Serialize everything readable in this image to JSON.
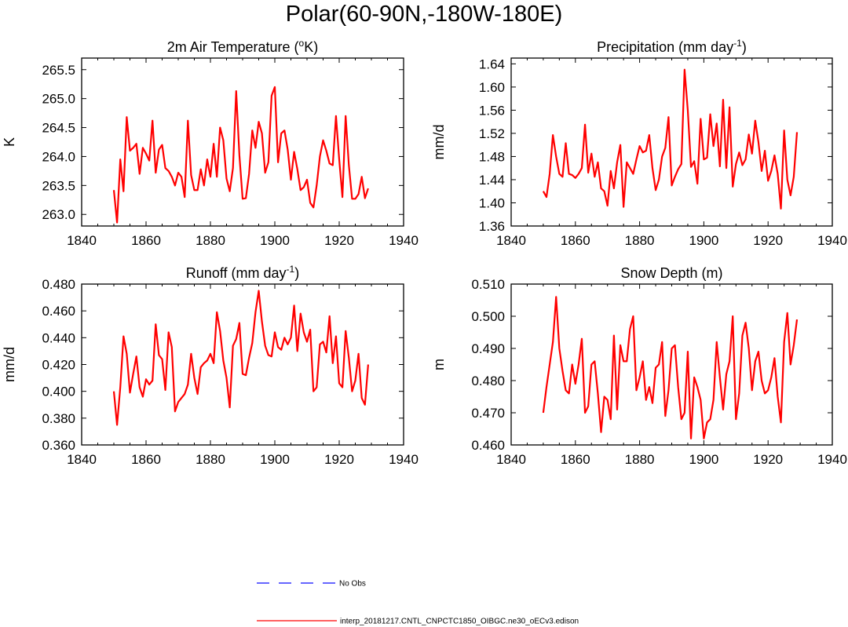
{
  "page_title": "Polar(60-90N,-180W-180E)",
  "colors": {
    "model": "#ff0000",
    "obs": "#3333ff",
    "axis": "#000000"
  },
  "legend": {
    "obs_label": "No Obs",
    "model_label": "interp_20181217.CNTL_CNPCTC1850_OIBGC.ne30_oECv3.edison"
  },
  "chart_data": [
    {
      "type": "line",
      "title_parts": [
        "2m Air Temperature (",
        "o",
        "K)"
      ],
      "title_style": "sup",
      "ylabel": "K",
      "xlim": [
        1840,
        1940
      ],
      "xticks": [
        1840,
        1860,
        1880,
        1900,
        1920,
        1940
      ],
      "ylim": [
        262.8,
        265.7
      ],
      "yticks": [
        263.0,
        263.5,
        264.0,
        264.5,
        265.0,
        265.5
      ],
      "ytick_decimals": 1,
      "x_start": 1850,
      "series": [
        {
          "name": "model",
          "values": [
            263.42,
            262.86,
            263.95,
            263.4,
            264.68,
            264.1,
            264.15,
            264.22,
            263.7,
            264.15,
            264.05,
            263.93,
            264.62,
            263.72,
            264.12,
            264.2,
            263.8,
            263.75,
            263.65,
            263.5,
            263.72,
            263.65,
            263.3,
            264.62,
            263.68,
            263.42,
            263.42,
            263.78,
            263.5,
            263.95,
            263.65,
            264.22,
            263.65,
            264.5,
            264.28,
            263.62,
            263.4,
            263.8,
            265.13,
            264.02,
            263.27,
            263.28,
            263.7,
            264.45,
            264.15,
            264.6,
            264.4,
            263.72,
            263.9,
            265.05,
            265.2,
            263.9,
            264.4,
            264.45,
            264.12,
            263.6,
            264.08,
            263.78,
            263.42,
            263.47,
            263.6,
            263.2,
            263.12,
            263.5,
            264.0,
            264.28,
            264.1,
            263.88,
            263.85,
            264.7,
            263.95,
            263.3,
            264.7,
            263.85,
            263.27,
            263.27,
            263.35,
            263.65,
            263.28,
            263.45
          ]
        }
      ]
    },
    {
      "type": "line",
      "title_parts": [
        "Precipitation (mm day",
        "-1",
        ")"
      ],
      "title_style": "sup",
      "ylabel": "mm/d",
      "xlim": [
        1840,
        1940
      ],
      "xticks": [
        1840,
        1860,
        1880,
        1900,
        1920,
        1940
      ],
      "ylim": [
        1.36,
        1.65
      ],
      "yticks": [
        1.36,
        1.4,
        1.44,
        1.48,
        1.52,
        1.56,
        1.6,
        1.64
      ],
      "ytick_decimals": 2,
      "x_start": 1850,
      "series": [
        {
          "name": "model",
          "values": [
            1.42,
            1.41,
            1.45,
            1.517,
            1.48,
            1.45,
            1.445,
            1.503,
            1.45,
            1.448,
            1.443,
            1.45,
            1.46,
            1.535,
            1.452,
            1.485,
            1.445,
            1.47,
            1.425,
            1.42,
            1.395,
            1.455,
            1.425,
            1.47,
            1.5,
            1.393,
            1.47,
            1.46,
            1.45,
            1.475,
            1.498,
            1.487,
            1.49,
            1.517,
            1.46,
            1.422,
            1.44,
            1.48,
            1.495,
            1.548,
            1.43,
            1.445,
            1.458,
            1.467,
            1.63,
            1.56,
            1.462,
            1.472,
            1.433,
            1.545,
            1.475,
            1.478,
            1.553,
            1.498,
            1.537,
            1.463,
            1.578,
            1.46,
            1.565,
            1.428,
            1.467,
            1.487,
            1.465,
            1.475,
            1.518,
            1.485,
            1.542,
            1.505,
            1.455,
            1.49,
            1.438,
            1.455,
            1.482,
            1.45,
            1.39,
            1.525,
            1.44,
            1.413,
            1.445,
            1.522
          ]
        }
      ]
    },
    {
      "type": "line",
      "title_parts": [
        "Runoff (mm day",
        "-1",
        ")"
      ],
      "title_style": "sup",
      "ylabel": "mm/d",
      "xlim": [
        1840,
        1940
      ],
      "xticks": [
        1840,
        1860,
        1880,
        1900,
        1920,
        1940
      ],
      "ylim": [
        0.36,
        0.48
      ],
      "yticks": [
        0.36,
        0.38,
        0.4,
        0.42,
        0.44,
        0.46,
        0.48
      ],
      "ytick_decimals": 3,
      "x_start": 1850,
      "series": [
        {
          "name": "model",
          "values": [
            0.4,
            0.375,
            0.403,
            0.441,
            0.428,
            0.399,
            0.413,
            0.426,
            0.403,
            0.396,
            0.409,
            0.405,
            0.408,
            0.45,
            0.427,
            0.424,
            0.401,
            0.444,
            0.433,
            0.385,
            0.392,
            0.395,
            0.398,
            0.405,
            0.428,
            0.41,
            0.398,
            0.418,
            0.421,
            0.423,
            0.428,
            0.421,
            0.459,
            0.445,
            0.423,
            0.41,
            0.388,
            0.434,
            0.439,
            0.451,
            0.413,
            0.412,
            0.425,
            0.436,
            0.459,
            0.475,
            0.452,
            0.434,
            0.427,
            0.426,
            0.444,
            0.433,
            0.431,
            0.44,
            0.435,
            0.44,
            0.464,
            0.43,
            0.458,
            0.444,
            0.437,
            0.446,
            0.4,
            0.403,
            0.435,
            0.437,
            0.429,
            0.456,
            0.421,
            0.441,
            0.406,
            0.403,
            0.445,
            0.425,
            0.4,
            0.408,
            0.428,
            0.395,
            0.39,
            0.42
          ]
        }
      ]
    },
    {
      "type": "line",
      "title_parts": [
        "Snow Depth (m)"
      ],
      "title_style": "plain",
      "ylabel": "m",
      "xlim": [
        1840,
        1940
      ],
      "xticks": [
        1840,
        1860,
        1880,
        1900,
        1920,
        1940
      ],
      "ylim": [
        0.46,
        0.51
      ],
      "yticks": [
        0.46,
        0.47,
        0.48,
        0.49,
        0.5,
        0.51
      ],
      "ytick_decimals": 3,
      "x_start": 1850,
      "series": [
        {
          "name": "model",
          "values": [
            0.47,
            0.478,
            0.485,
            0.492,
            0.506,
            0.49,
            0.483,
            0.477,
            0.476,
            0.485,
            0.479,
            0.485,
            0.493,
            0.47,
            0.472,
            0.485,
            0.486,
            0.476,
            0.464,
            0.475,
            0.474,
            0.468,
            0.494,
            0.471,
            0.491,
            0.486,
            0.486,
            0.496,
            0.5,
            0.477,
            0.481,
            0.486,
            0.474,
            0.478,
            0.473,
            0.484,
            0.485,
            0.492,
            0.469,
            0.477,
            0.49,
            0.491,
            0.478,
            0.468,
            0.47,
            0.489,
            0.462,
            0.481,
            0.478,
            0.474,
            0.462,
            0.467,
            0.468,
            0.474,
            0.492,
            0.481,
            0.471,
            0.482,
            0.486,
            0.5,
            0.468,
            0.476,
            0.494,
            0.498,
            0.49,
            0.477,
            0.486,
            0.489,
            0.48,
            0.476,
            0.477,
            0.481,
            0.487,
            0.475,
            0.467,
            0.492,
            0.501,
            0.485,
            0.491,
            0.499
          ]
        }
      ]
    }
  ]
}
